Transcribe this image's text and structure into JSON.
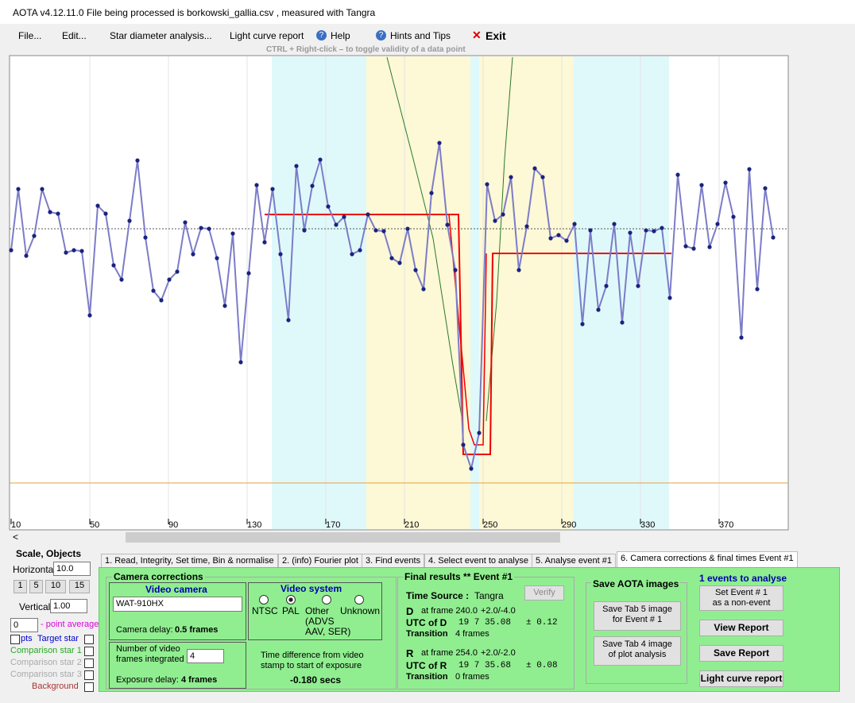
{
  "title_bar": "AOTA v4.12.11.0   File being processed is  borkowski_gallia.csv ,  measured with Tangra",
  "menu": [
    "File...",
    "Edit...",
    "Star diameter analysis...",
    "Light curve report",
    "Help",
    "Hints and Tips",
    "Exit"
  ],
  "hint": "CTRL + Right-click   –   to toggle validity of a data point",
  "plot": {
    "xticks": [
      10,
      50,
      90,
      130,
      170,
      210,
      250,
      290,
      330,
      370
    ]
  },
  "left_panel": {
    "heading": "Scale,  Objects",
    "horizontal": "Horizontal",
    "horizontal_value": "10.0",
    "scale_buttons": [
      "1",
      "5",
      "10",
      "15"
    ],
    "vertical": "Vertical",
    "vertical_value": "1.00",
    "point_average_value": "0",
    "point_average": "- point average",
    "pts": "pts",
    "objects": [
      "Target star",
      "Comparison star 1",
      "Comparison star 2",
      "Comparison star 3",
      "Background"
    ]
  },
  "tabs": [
    "1. Read, Integrity, Set time, Bin & normalise",
    "2. (info)  Fourier plot",
    "3. Find events",
    "4. Select event to analyse",
    "5. Analyse event #1",
    "6. Camera corrections & final times Event #1"
  ],
  "camera": {
    "heading": "Camera corrections",
    "video_camera": "Video camera",
    "camera_model": "WAT-910HX",
    "camera_delay_label": "Camera delay:",
    "camera_delay": "0.5 frames",
    "video_system": "Video system",
    "systems": [
      "NTSC",
      "PAL",
      "Other",
      "Unknown"
    ],
    "other_note": [
      "(ADVS",
      "AAV, SER)"
    ],
    "frames_integrated_label": [
      "Number of video",
      "frames integrated"
    ],
    "frames_integrated": "4",
    "exposure_delay_label": "Exposure delay:",
    "exposure_delay": "4 frames",
    "time_diff_label": [
      "Time difference from video",
      "stamp to start of exposure"
    ],
    "time_diff": "-0.180 secs"
  },
  "final": {
    "heading": "Final results  **  Event #1",
    "time_source_label": "Time Source :",
    "time_source": "Tangra",
    "verify": "Verify",
    "d": {
      "letter": "D",
      "frame": "at frame 240.0",
      "range": "+2.0/-4.0",
      "utc_label": "UTC of D",
      "utc": "19  7 35.08",
      "err": "± 0.12",
      "transition_label": "Transition",
      "transition": "4 frames"
    },
    "r": {
      "letter": "R",
      "frame": "at frame 254.0",
      "range": "+2.0/-2.0",
      "utc_label": "UTC of R",
      "utc": "19  7 35.68",
      "err": "± 0.08",
      "transition_label": "Transition",
      "transition": "0 frames"
    }
  },
  "save": {
    "heading": "Save AOTA images",
    "tab5": [
      "Save Tab 5 image",
      "for Event # 1"
    ],
    "tab4": [
      "Save Tab 4 image",
      "of plot analysis"
    ]
  },
  "events": {
    "heading": "1 events to analyse",
    "non_event": [
      "Set Event # 1",
      "as a non-event"
    ],
    "view": "View Report",
    "save": "Save Report",
    "lc": "Light curve report"
  }
}
